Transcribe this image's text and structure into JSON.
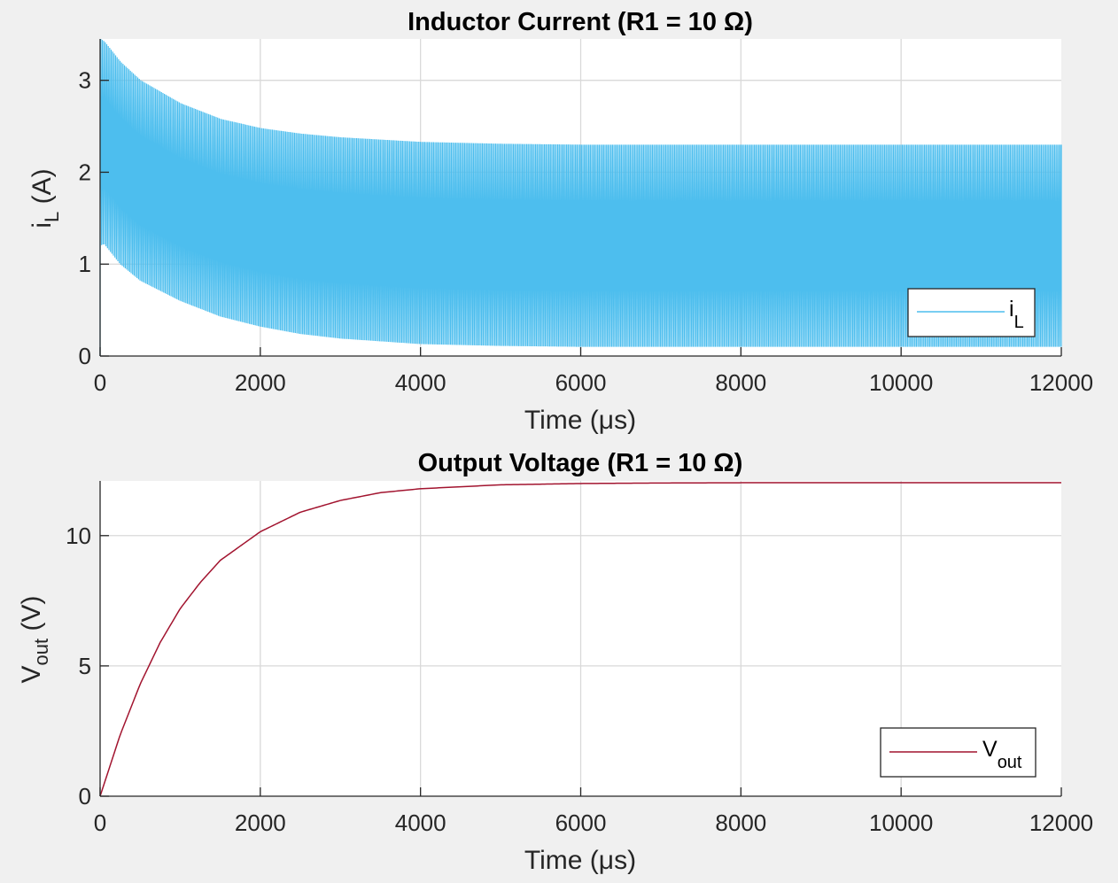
{
  "colors": {
    "background": "#f0f0f0",
    "axes_background": "#ffffff",
    "current_color": "#4dbeee",
    "voltage_color": "#a2142f",
    "grid_color": "#d9d9d9",
    "axis_color": "#262626"
  },
  "chart_data": [
    {
      "type": "line",
      "title": "Inductor Current (R1 = 10 Ω)",
      "xlabel": "Time (μs)",
      "ylabel": {
        "main": "i",
        "sub": "L",
        "unit": " (A)"
      },
      "xlim": [
        0,
        12000
      ],
      "ylim": [
        0,
        3.45
      ],
      "xticks": [
        0,
        2000,
        4000,
        6000,
        8000,
        10000,
        12000
      ],
      "xtick_labels": [
        "0",
        "2000",
        "4000",
        "6000",
        "8000",
        "10000",
        "12000"
      ],
      "yticks": [
        0,
        1,
        2,
        3
      ],
      "ytick_labels": [
        "0",
        "1",
        "2",
        "3"
      ],
      "grid": true,
      "legend_position": "bottom-right",
      "series": [
        {
          "legend": {
            "main": "i",
            "sub": "L"
          },
          "style": "ripple-band",
          "envelope_x": [
            0,
            50,
            250,
            500,
            1000,
            1500,
            2000,
            2500,
            3000,
            4000,
            5000,
            6000,
            8000,
            10000,
            12000
          ],
          "envelope_max": [
            3.45,
            3.42,
            3.2,
            3.0,
            2.75,
            2.58,
            2.48,
            2.42,
            2.38,
            2.33,
            2.31,
            2.3,
            2.3,
            2.3,
            2.3
          ],
          "envelope_min": [
            1.2,
            1.22,
            1.0,
            0.82,
            0.6,
            0.43,
            0.32,
            0.24,
            0.19,
            0.13,
            0.11,
            0.1,
            0.1,
            0.1,
            0.1
          ],
          "start_value": 0
        }
      ]
    },
    {
      "type": "line",
      "title": "Output Voltage (R1 = 10 Ω)",
      "xlabel": "Time (μs)",
      "ylabel": {
        "main": "V",
        "sub": "out",
        "unit": " (V)"
      },
      "xlim": [
        0,
        12000
      ],
      "ylim": [
        0,
        12.1
      ],
      "xticks": [
        0,
        2000,
        4000,
        6000,
        8000,
        10000,
        12000
      ],
      "xtick_labels": [
        "0",
        "2000",
        "4000",
        "6000",
        "8000",
        "10000",
        "12000"
      ],
      "yticks": [
        0,
        5,
        10
      ],
      "ytick_labels": [
        "0",
        "5",
        "10"
      ],
      "grid": true,
      "legend_position": "bottom-right",
      "series": [
        {
          "legend": {
            "main": "V",
            "sub": "out"
          },
          "x": [
            0,
            250,
            500,
            750,
            1000,
            1250,
            1500,
            2000,
            2500,
            3000,
            3500,
            4000,
            5000,
            6000,
            7000,
            8000,
            10000,
            12000
          ],
          "y": [
            0,
            2.35,
            4.3,
            5.9,
            7.2,
            8.2,
            9.05,
            10.15,
            10.9,
            11.35,
            11.65,
            11.8,
            11.95,
            12.0,
            12.02,
            12.03,
            12.03,
            12.03
          ]
        }
      ]
    }
  ]
}
